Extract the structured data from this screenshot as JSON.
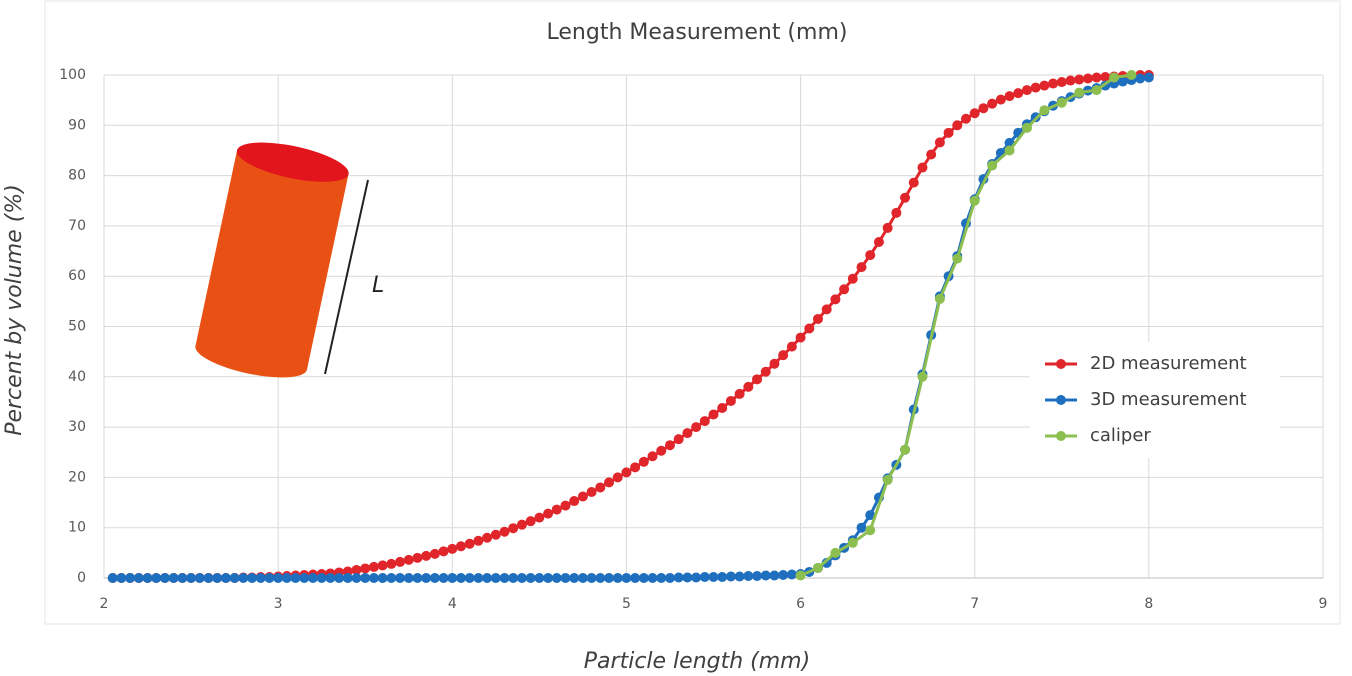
{
  "chart_data": {
    "type": "line",
    "title": "Length Measurement (mm)",
    "x_label": "Particle length (mm)",
    "y_label": "Percent by volume (%)",
    "annotation": "L",
    "xlim": [
      2,
      9
    ],
    "xticks": [
      2,
      3,
      4,
      5,
      6,
      7,
      8,
      9
    ],
    "ylim": [
      0,
      100
    ],
    "yticks": [
      0,
      10,
      20,
      30,
      40,
      50,
      60,
      70,
      80,
      90,
      100
    ],
    "grid": true,
    "legend": "right",
    "x": [
      2.05,
      2.1,
      2.15,
      2.2,
      2.25,
      2.3,
      2.35,
      2.4,
      2.45,
      2.5,
      2.55,
      2.6,
      2.65,
      2.7,
      2.75,
      2.8,
      2.85,
      2.9,
      2.95,
      3,
      3.05,
      3.1,
      3.15,
      3.2,
      3.25,
      3.3,
      3.35,
      3.4,
      3.45,
      3.5,
      3.55,
      3.6,
      3.65,
      3.7,
      3.75,
      3.8,
      3.85,
      3.9,
      3.95,
      4,
      4.05,
      4.1,
      4.15,
      4.2,
      4.25,
      4.3,
      4.35,
      4.4,
      4.45,
      4.5,
      4.55,
      4.6,
      4.65,
      4.7,
      4.75,
      4.8,
      4.85,
      4.9,
      4.95,
      5,
      5.05,
      5.1,
      5.15,
      5.2,
      5.25,
      5.3,
      5.35,
      5.4,
      5.45,
      5.5,
      5.55,
      5.6,
      5.65,
      5.7,
      5.75,
      5.8,
      5.85,
      5.9,
      5.95,
      6,
      6.05,
      6.1,
      6.15,
      6.2,
      6.25,
      6.3,
      6.35,
      6.4,
      6.45,
      6.5,
      6.55,
      6.6,
      6.65,
      6.7,
      6.75,
      6.8,
      6.85,
      6.9,
      6.95,
      7,
      7.05,
      7.1,
      7.15,
      7.2,
      7.25,
      7.3,
      7.35,
      7.4,
      7.45,
      7.5,
      7.55,
      7.6,
      7.65,
      7.7,
      7.75,
      7.8,
      7.85,
      7.9,
      7.95,
      8
    ],
    "series": [
      {
        "name": "2D measurement",
        "color": "#e0262b",
        "values": [
          0,
          0,
          0,
          0,
          0,
          0,
          0,
          0,
          0,
          0,
          0,
          0,
          0,
          0,
          0,
          0.1,
          0.1,
          0.2,
          0.2,
          0.3,
          0.4,
          0.5,
          0.6,
          0.7,
          0.8,
          0.9,
          1.1,
          1.3,
          1.6,
          1.9,
          2.2,
          2.5,
          2.8,
          3.2,
          3.6,
          4,
          4.4,
          4.8,
          5.3,
          5.8,
          6.3,
          6.8,
          7.4,
          8,
          8.6,
          9.2,
          9.9,
          10.6,
          11.3,
          12,
          12.8,
          13.6,
          14.4,
          15.3,
          16.2,
          17.1,
          18,
          19,
          20,
          21,
          22,
          23.1,
          24.2,
          25.3,
          26.4,
          27.6,
          28.8,
          30,
          31.2,
          32.5,
          33.8,
          35.2,
          36.6,
          38,
          39.5,
          41,
          42.6,
          44.3,
          46,
          47.8,
          49.6,
          51.5,
          53.4,
          55.4,
          57.4,
          59.5,
          61.8,
          64.2,
          66.8,
          69.6,
          72.6,
          75.6,
          78.6,
          81.6,
          84.2,
          86.6,
          88.5,
          90,
          91.3,
          92.4,
          93.4,
          94.3,
          95.1,
          95.8,
          96.4,
          97,
          97.5,
          97.9,
          98.3,
          98.6,
          98.9,
          99.1,
          99.3,
          99.5,
          99.6,
          99.7,
          99.8,
          99.9,
          100,
          100
        ]
      },
      {
        "name": "3D measurement",
        "color": "#1f6fbf",
        "values": [
          0,
          0,
          0,
          0,
          0,
          0,
          0,
          0,
          0,
          0,
          0,
          0,
          0,
          0,
          0,
          0,
          0,
          0,
          0,
          0,
          0,
          0,
          0,
          0,
          0,
          0,
          0,
          0,
          0,
          0,
          0,
          0,
          0,
          0,
          0,
          0,
          0,
          0,
          0,
          0,
          0,
          0,
          0,
          0,
          0,
          0,
          0,
          0,
          0,
          0,
          0,
          0,
          0,
          0,
          0,
          0,
          0,
          0,
          0,
          0,
          0,
          0,
          0,
          0,
          0,
          0.1,
          0.1,
          0.1,
          0.2,
          0.2,
          0.2,
          0.3,
          0.3,
          0.4,
          0.4,
          0.5,
          0.5,
          0.6,
          0.7,
          0.8,
          1.2,
          2,
          3,
          4.5,
          6,
          7.5,
          10,
          12.5,
          16,
          19.8,
          22.5,
          25.5,
          33.5,
          40.5,
          48.3,
          56,
          60,
          64,
          70.5,
          75.3,
          79.3,
          82.3,
          84.5,
          86.5,
          88.5,
          90.2,
          91.6,
          92.8,
          93.9,
          94.8,
          95.6,
          96.3,
          96.9,
          97.4,
          97.9,
          98.3,
          98.7,
          99,
          99.3,
          99.5
        ]
      },
      {
        "name": "caliper",
        "color": "#8cbf4f",
        "x": [
          6,
          6.1,
          6.2,
          6.3,
          6.4,
          6.5,
          6.6,
          6.7,
          6.8,
          6.9,
          7,
          7.1,
          7.2,
          7.3,
          7.4,
          7.5,
          7.6,
          7.7,
          7.8,
          7.9
        ],
        "values": [
          0.5,
          2,
          5,
          7,
          9.5,
          19.5,
          25.5,
          40,
          55.5,
          63.5,
          75,
          82,
          85,
          89.5,
          93,
          94.5,
          96.5,
          97,
          99.5,
          100
        ]
      }
    ]
  }
}
